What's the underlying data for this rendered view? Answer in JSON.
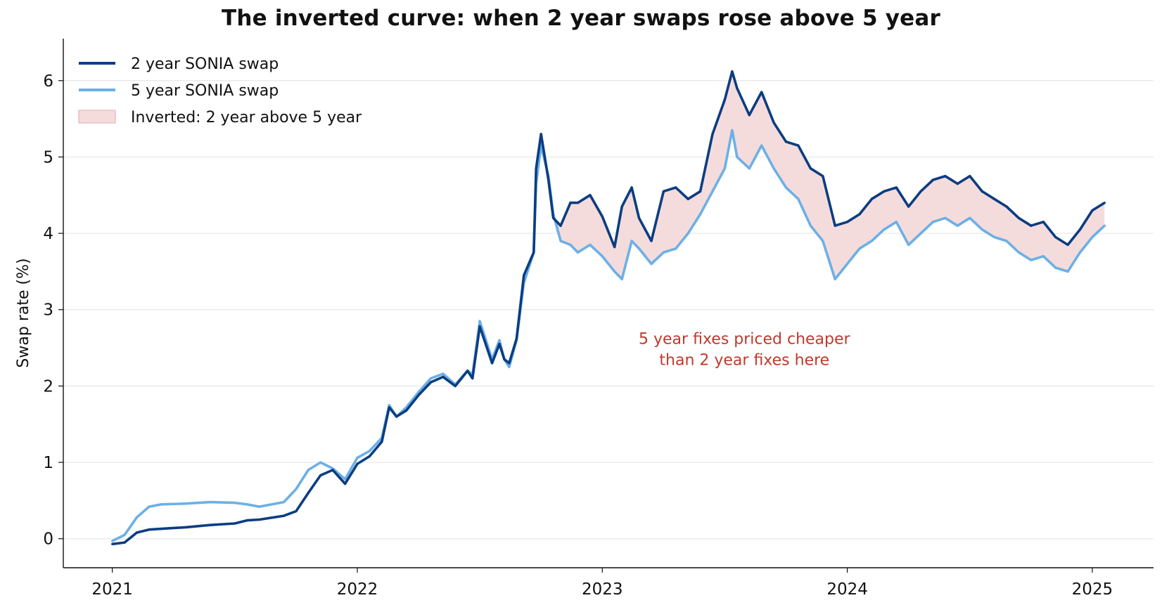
{
  "chart_data": {
    "type": "line",
    "title": "The inverted curve: when 2 year swaps rose above 5 year",
    "xlabel": "",
    "ylabel": "Swap rate (%)",
    "xlim": [
      2020.8,
      2025.25
    ],
    "ylim": [
      -0.38,
      6.55
    ],
    "x_ticks": [
      2021,
      2022,
      2023,
      2024,
      2025
    ],
    "x_tick_labels": [
      "2021",
      "2022",
      "2023",
      "2024",
      "2025"
    ],
    "y_ticks": [
      0,
      1,
      2,
      3,
      4,
      5,
      6
    ],
    "y_tick_labels": [
      "0",
      "1",
      "2",
      "3",
      "4",
      "5",
      "6"
    ],
    "grid": "horizontal",
    "legend_position": "top-left",
    "legend": [
      {
        "label": "2 year SONIA swap",
        "kind": "line",
        "color": "#0b3d82"
      },
      {
        "label": "5 year SONIA swap",
        "kind": "line",
        "color": "#6cb0e6"
      },
      {
        "label": "Inverted: 2 year above 5 year",
        "kind": "patch",
        "color": "#f5dcdc",
        "edge": "#e9b4b4"
      }
    ],
    "annotation": {
      "lines": [
        "5 year fixes priced cheaper",
        "than 2 year fixes here"
      ],
      "x": 2023.58,
      "y": 2.55,
      "color": "#c0392b"
    },
    "x": [
      2021.0,
      2021.05,
      2021.1,
      2021.15,
      2021.2,
      2021.3,
      2021.4,
      2021.5,
      2021.55,
      2021.6,
      2021.7,
      2021.75,
      2021.8,
      2021.85,
      2021.9,
      2021.95,
      2022.0,
      2022.05,
      2022.1,
      2022.13,
      2022.16,
      2022.2,
      2022.25,
      2022.3,
      2022.35,
      2022.4,
      2022.45,
      2022.47,
      2022.5,
      2022.55,
      2022.58,
      2022.6,
      2022.62,
      2022.65,
      2022.68,
      2022.7,
      2022.72,
      2022.73,
      2022.75,
      2022.78,
      2022.8,
      2022.83,
      2022.87,
      2022.9,
      2022.95,
      2023.0,
      2023.05,
      2023.08,
      2023.12,
      2023.15,
      2023.2,
      2023.25,
      2023.3,
      2023.35,
      2023.4,
      2023.45,
      2023.5,
      2023.53,
      2023.55,
      2023.6,
      2023.65,
      2023.7,
      2023.75,
      2023.8,
      2023.85,
      2023.9,
      2023.95,
      2024.0,
      2024.05,
      2024.1,
      2024.15,
      2024.2,
      2024.25,
      2024.3,
      2024.35,
      2024.4,
      2024.45,
      2024.5,
      2024.55,
      2024.6,
      2024.65,
      2024.7,
      2024.75,
      2024.8,
      2024.85,
      2024.9,
      2024.95,
      2025.0,
      2025.05
    ],
    "series": [
      {
        "name": "2 year SONIA swap",
        "color": "#0b3d82",
        "values": [
          -0.07,
          -0.05,
          0.08,
          0.12,
          0.13,
          0.15,
          0.18,
          0.2,
          0.24,
          0.25,
          0.3,
          0.36,
          0.6,
          0.83,
          0.9,
          0.72,
          0.98,
          1.08,
          1.27,
          1.72,
          1.6,
          1.68,
          1.88,
          2.05,
          2.12,
          2.0,
          2.2,
          2.1,
          2.78,
          2.3,
          2.55,
          2.35,
          2.3,
          2.62,
          3.45,
          3.6,
          3.75,
          4.85,
          5.3,
          4.7,
          4.2,
          4.1,
          4.4,
          4.4,
          4.5,
          4.22,
          3.82,
          4.35,
          4.6,
          4.2,
          3.9,
          4.55,
          4.6,
          4.45,
          4.55,
          5.3,
          5.75,
          6.12,
          5.9,
          5.55,
          5.85,
          5.45,
          5.2,
          5.15,
          4.85,
          4.75,
          4.1,
          4.15,
          4.25,
          4.45,
          4.55,
          4.6,
          4.35,
          4.55,
          4.7,
          4.75,
          4.65,
          4.75,
          4.55,
          4.45,
          4.35,
          4.2,
          4.1,
          4.15,
          3.95,
          3.85,
          4.05,
          4.3,
          4.4
        ]
      },
      {
        "name": "5 year SONIA swap",
        "color": "#6cb0e6",
        "values": [
          -0.03,
          0.05,
          0.28,
          0.42,
          0.45,
          0.46,
          0.48,
          0.47,
          0.45,
          0.42,
          0.48,
          0.65,
          0.9,
          1.0,
          0.92,
          0.78,
          1.06,
          1.15,
          1.32,
          1.75,
          1.6,
          1.72,
          1.92,
          2.1,
          2.16,
          2.02,
          2.2,
          2.15,
          2.85,
          2.35,
          2.6,
          2.35,
          2.25,
          2.6,
          3.35,
          3.55,
          3.75,
          4.65,
          5.15,
          4.75,
          4.25,
          3.9,
          3.85,
          3.75,
          3.85,
          3.7,
          3.5,
          3.4,
          3.9,
          3.8,
          3.6,
          3.75,
          3.8,
          4.0,
          4.25,
          4.55,
          4.85,
          5.35,
          5.0,
          4.85,
          5.15,
          4.85,
          4.6,
          4.45,
          4.1,
          3.9,
          3.4,
          3.6,
          3.8,
          3.9,
          4.05,
          4.15,
          3.85,
          4.0,
          4.15,
          4.2,
          4.1,
          4.2,
          4.05,
          3.95,
          3.9,
          3.75,
          3.65,
          3.7,
          3.55,
          3.5,
          3.75,
          3.95,
          4.1
        ]
      }
    ]
  }
}
